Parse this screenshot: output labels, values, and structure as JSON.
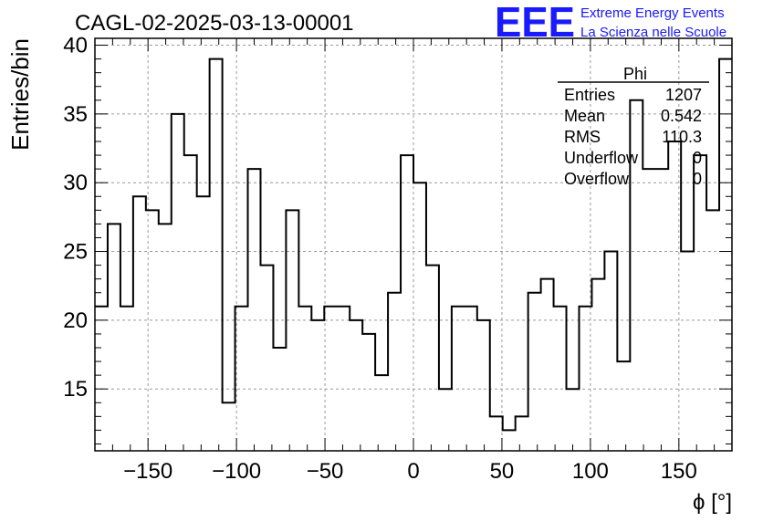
{
  "chart_data": {
    "type": "histogram",
    "title": "CAGL-02-2025-03-13-00001",
    "xlabel": "ϕ [°]",
    "ylabel": "Entries/bin",
    "xlim": [
      -180,
      180
    ],
    "ylim": [
      10.5,
      40.5
    ],
    "grid": true,
    "bin_width": 7.2,
    "xticks": [
      -150,
      -100,
      -50,
      0,
      50,
      100,
      150
    ],
    "xtick_labels": [
      "−150",
      "−100",
      "−50",
      "0",
      "50",
      "100",
      "150"
    ],
    "yticks": [
      15,
      20,
      25,
      30,
      35,
      40
    ],
    "ytick_labels": [
      "15",
      "20",
      "25",
      "30",
      "35",
      "40"
    ],
    "bin_low_edges": [
      -180,
      -172.8,
      -165.6,
      -158.4,
      -151.2,
      -144,
      -136.8,
      -129.6,
      -122.4,
      -115.2,
      -108,
      -100.8,
      -93.6,
      -86.4,
      -79.2,
      -72,
      -64.8,
      -57.6,
      -50.4,
      -43.2,
      -36,
      -28.8,
      -21.6,
      -14.4,
      -7.2,
      0,
      7.2,
      14.4,
      21.6,
      28.8,
      36,
      43.2,
      50.4,
      57.6,
      64.8,
      72,
      79.2,
      86.4,
      93.6,
      100.8,
      108,
      115.2,
      122.4,
      129.6,
      136.8,
      144,
      151.2,
      158.4,
      165.6,
      172.8
    ],
    "values": [
      21,
      27,
      21,
      29,
      28,
      27,
      35,
      32,
      29,
      39,
      14,
      21,
      31,
      24,
      18,
      28,
      21,
      20,
      21,
      21,
      20,
      19,
      16,
      22,
      32,
      30,
      24,
      15,
      21,
      21,
      20,
      13,
      12,
      13,
      22,
      23,
      21,
      15,
      21,
      23,
      25,
      17,
      36,
      31,
      31,
      33,
      25,
      32,
      28,
      39
    ],
    "stats": {
      "name": "Phi",
      "rows": [
        {
          "label": "Entries",
          "value": "1207"
        },
        {
          "label": "Mean",
          "value": "0.542"
        },
        {
          "label": "RMS",
          "value": "110.3"
        },
        {
          "label": "Underflow",
          "value": "0"
        },
        {
          "label": "Overflow",
          "value": "0"
        }
      ]
    }
  },
  "logo": {
    "text": "EEE",
    "line1": "Extreme Energy Events",
    "line2": "La Scienza nelle Scuole",
    "color": "#1a1aff"
  }
}
